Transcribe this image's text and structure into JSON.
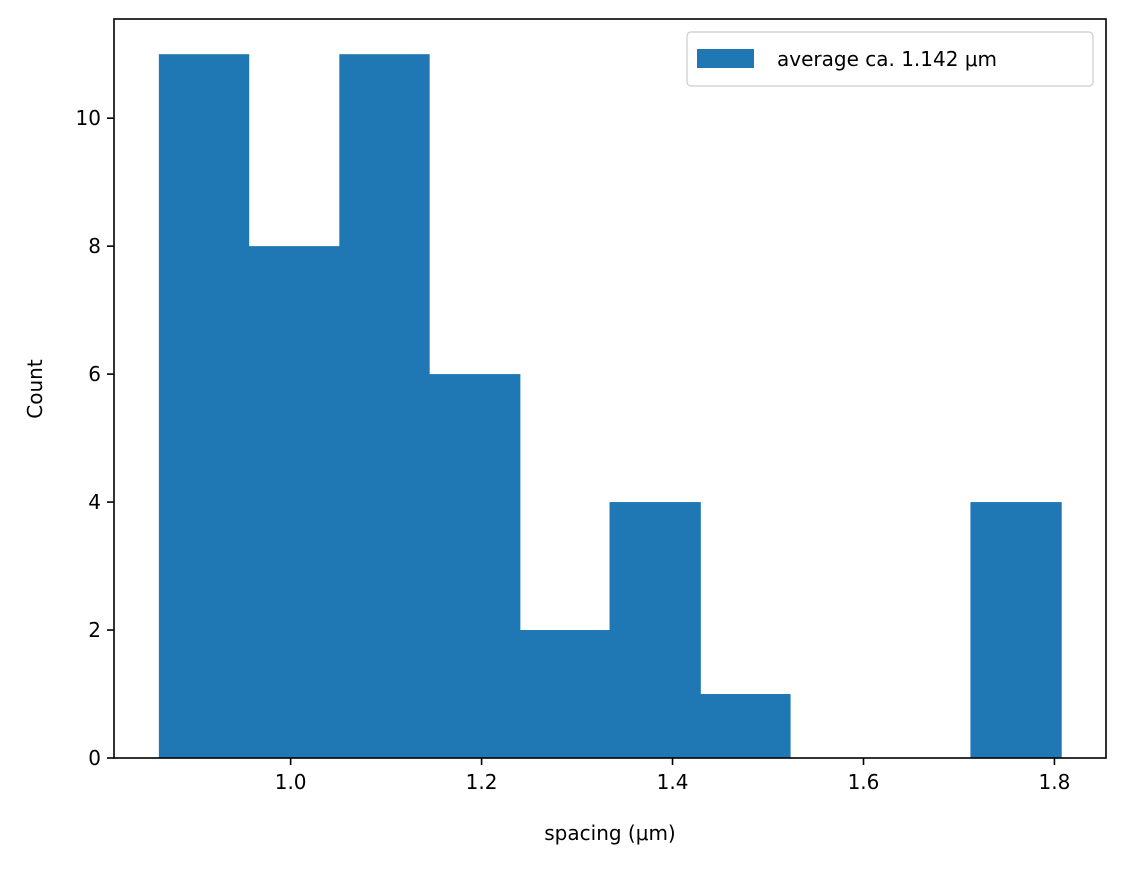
{
  "chart_data": {
    "type": "bar",
    "histogram": true,
    "bins": [
      {
        "x0": 0.862,
        "x1": 0.956,
        "count": 11
      },
      {
        "x0": 0.956,
        "x1": 1.051,
        "count": 8
      },
      {
        "x0": 1.051,
        "x1": 1.145,
        "count": 11
      },
      {
        "x0": 1.145,
        "x1": 1.24,
        "count": 6
      },
      {
        "x0": 1.24,
        "x1": 1.334,
        "count": 2
      },
      {
        "x0": 1.334,
        "x1": 1.429,
        "count": 4
      },
      {
        "x0": 1.429,
        "x1": 1.523,
        "count": 1
      },
      {
        "x0": 1.523,
        "x1": 1.618,
        "count": 0
      },
      {
        "x0": 1.618,
        "x1": 1.712,
        "count": 0
      },
      {
        "x0": 1.712,
        "x1": 1.807,
        "count": 4
      }
    ],
    "xlim": [
      0.815,
      1.854
    ],
    "ylim": [
      0,
      11.55
    ],
    "xticks": [
      1.0,
      1.2,
      1.4,
      1.6,
      1.8
    ],
    "xtick_labels": [
      "1.0",
      "1.2",
      "1.4",
      "1.6",
      "1.8"
    ],
    "yticks": [
      0,
      2,
      4,
      6,
      8,
      10
    ],
    "ytick_labels": [
      "0",
      "2",
      "4",
      "6",
      "8",
      "10"
    ],
    "xlabel": "spacing (μm)",
    "ylabel": "Count",
    "legend": {
      "entries": [
        "average ca. 1.142 μm"
      ],
      "placement": "top-right"
    },
    "grid": false,
    "bar_color": "#1f77b4"
  }
}
